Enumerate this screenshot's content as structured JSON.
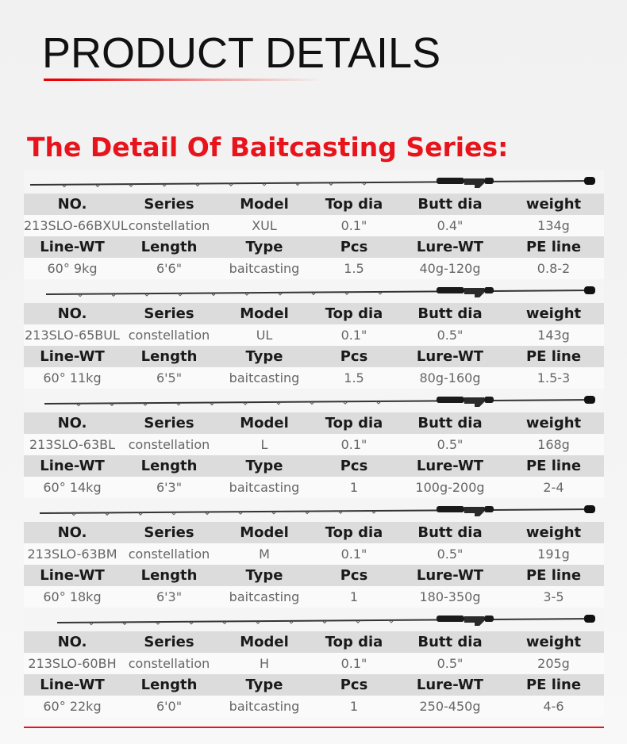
{
  "header": {
    "title": "PRODUCT DETAILS",
    "subtitle": "The Detail Of Baitcasting Series:"
  },
  "products": [
    {
      "rows": [
        [
          "NO.",
          "Series",
          "Model",
          "Top dia",
          "Butt dia",
          "weight"
        ],
        [
          "213SLO-66BXUL",
          "constellation",
          "XUL",
          "0.1\"",
          "0.4\"",
          "134g"
        ],
        [
          "Line-WT",
          "Length",
          "Type",
          "Pcs",
          "Lure-WT",
          "PE line"
        ],
        [
          "60° 9kg",
          "6'6\"",
          "baitcasting",
          "1.5",
          "40g-120g",
          "0.8-2"
        ]
      ]
    },
    {
      "rows": [
        [
          "NO.",
          "Series",
          "Model",
          "Top dia",
          "Butt dia",
          "weight"
        ],
        [
          "213SLO-65BUL",
          "constellation",
          "UL",
          "0.1\"",
          "0.5\"",
          "143g"
        ],
        [
          "Line-WT",
          "Length",
          "Type",
          "Pcs",
          "Lure-WT",
          "PE line"
        ],
        [
          "60° 11kg",
          "6'5\"",
          "baitcasting",
          "1.5",
          "80g-160g",
          "1.5-3"
        ]
      ]
    },
    {
      "rows": [
        [
          "NO.",
          "Series",
          "Model",
          "Top dia",
          "Butt dia",
          "weight"
        ],
        [
          "213SLO-63BL",
          "constellation",
          "L",
          "0.1\"",
          "0.5\"",
          "168g"
        ],
        [
          "Line-WT",
          "Length",
          "Type",
          "Pcs",
          "Lure-WT",
          "PE line"
        ],
        [
          "60° 14kg",
          "6'3\"",
          "baitcasting",
          "1",
          "100g-200g",
          "2-4"
        ]
      ]
    },
    {
      "rows": [
        [
          "NO.",
          "Series",
          "Model",
          "Top dia",
          "Butt dia",
          "weight"
        ],
        [
          "213SLO-63BM",
          "constellation",
          "M",
          "0.1\"",
          "0.5\"",
          "191g"
        ],
        [
          "Line-WT",
          "Length",
          "Type",
          "Pcs",
          "Lure-WT",
          "PE line"
        ],
        [
          "60° 18kg",
          "6'3\"",
          "baitcasting",
          "1",
          "180-350g",
          "3-5"
        ]
      ]
    },
    {
      "rows": [
        [
          "NO.",
          "Series",
          "Model",
          "Top dia",
          "Butt dia",
          "weight"
        ],
        [
          "213SLO-60BH",
          "constellation",
          "H",
          "0.1\"",
          "0.5\"",
          "205g"
        ],
        [
          "Line-WT",
          "Length",
          "Type",
          "Pcs",
          "Lure-WT",
          "PE line"
        ],
        [
          "60° 22kg",
          "6'0\"",
          "baitcasting",
          "1",
          "250-450g",
          "4-6"
        ]
      ]
    }
  ]
}
